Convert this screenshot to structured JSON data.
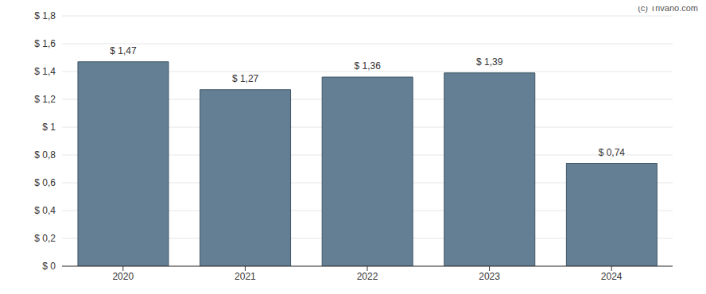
{
  "chart_data": {
    "type": "bar",
    "categories": [
      "2020",
      "2021",
      "2022",
      "2023",
      "2024"
    ],
    "values": [
      1.47,
      1.27,
      1.36,
      1.39,
      0.74
    ],
    "value_labels": [
      "$ 1,47",
      "$ 1,27",
      "$ 1,36",
      "$ 1,39",
      "$ 0,74"
    ],
    "data_labels": true,
    "color": "#647f93",
    "ylim": [
      0,
      1.8
    ],
    "yticks": [
      {
        "value": 0,
        "label": "$ 0"
      },
      {
        "value": 0.2,
        "label": "$ 0,2"
      },
      {
        "value": 0.4,
        "label": "$ 0,4"
      },
      {
        "value": 0.6,
        "label": "$ 0,6"
      },
      {
        "value": 0.8,
        "label": "$ 0,8"
      },
      {
        "value": 1,
        "label": "$ 1"
      },
      {
        "value": 1.2,
        "label": "$ 1,2"
      },
      {
        "value": 1.4,
        "label": "$ 1,4"
      },
      {
        "value": 1.6,
        "label": "$ 1,6"
      },
      {
        "value": 1.8,
        "label": "$ 1,8"
      }
    ],
    "grid": true,
    "annotations": [
      "(c) Trivano.com"
    ]
  }
}
